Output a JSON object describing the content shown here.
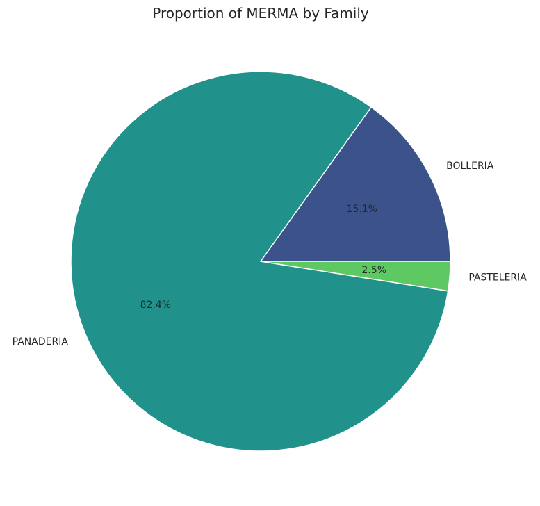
{
  "chart_data": {
    "type": "pie",
    "title": "Proportion of MERMA by Family",
    "slices": [
      {
        "label": "BOLLERIA",
        "value": 15.1,
        "pct_label": "15.1%",
        "color": "#3b528b"
      },
      {
        "label": "PANADERIA",
        "value": 82.4,
        "pct_label": "82.4%",
        "color": "#21918c"
      },
      {
        "label": "PASTELERIA",
        "value": 2.5,
        "pct_label": "2.5%",
        "color": "#5ec962"
      }
    ],
    "start_angle": 0,
    "direction": "counterclockwise"
  }
}
